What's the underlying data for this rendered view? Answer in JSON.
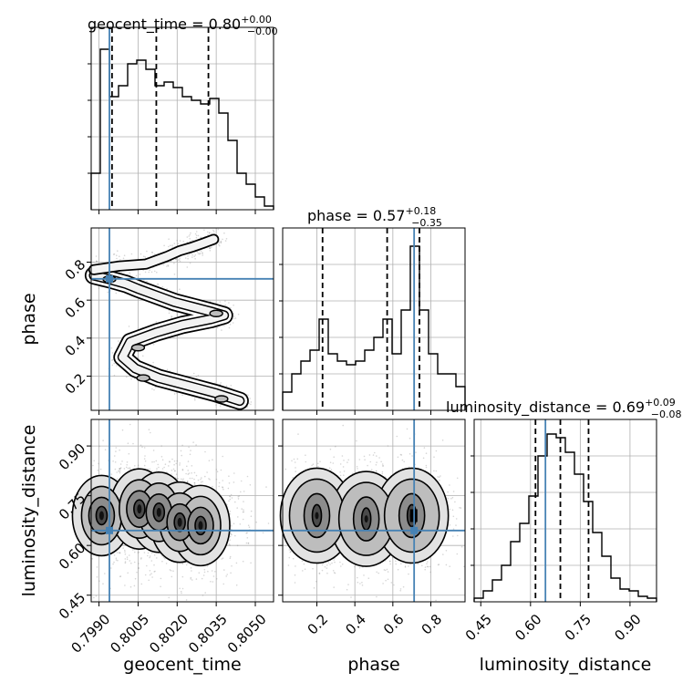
{
  "chart_data": {
    "type": "corner",
    "parameters": [
      "geocent_time",
      "phase",
      "luminosity_distance"
    ],
    "truths": {
      "geocent_time": 0.7994,
      "phase": 0.712,
      "luminosity_distance": 0.645
    },
    "titles": [
      {
        "param": "geocent_time",
        "text": "geocent_time = 0.80",
        "sup": "+0.00",
        "sub": "−0.00"
      },
      {
        "param": "phase",
        "text": "phase = 0.57",
        "sup": "+0.18",
        "sub": "−0.35"
      },
      {
        "param": "luminosity_distance",
        "text": "luminosity_distance = 0.69",
        "sup": "+0.09",
        "sub": "−0.08"
      }
    ],
    "axis_labels": {
      "geocent_time": "geocent_time",
      "phase": "phase",
      "luminosity_distance": "luminosity_distance"
    },
    "ranges": {
      "geocent_time": [
        0.7987,
        0.8057
      ],
      "phase": [
        0.02,
        0.98
      ],
      "luminosity_distance": [
        0.43,
        0.98
      ]
    },
    "ticks": {
      "geocent_time": [
        "0.7990",
        "0.8005",
        "0.8020",
        "0.8035",
        "0.8050"
      ],
      "phase": [
        "0.2",
        "0.4",
        "0.6",
        "0.8"
      ],
      "luminosity_distance": [
        "0.45",
        "0.60",
        "0.75",
        "0.90"
      ]
    },
    "histograms": {
      "geocent_time": {
        "edges": [
          0.7987,
          0.79905,
          0.7994,
          0.79975,
          0.8001,
          0.80045,
          0.8008,
          0.80115,
          0.8015,
          0.80185,
          0.8022,
          0.80255,
          0.8029,
          0.80325,
          0.8036,
          0.80395,
          0.8043,
          0.80465,
          0.805,
          0.80535,
          0.8057
        ],
        "counts": [
          0.2,
          0.88,
          0.62,
          0.68,
          0.8,
          0.82,
          0.77,
          0.68,
          0.7,
          0.67,
          0.62,
          0.6,
          0.58,
          0.61,
          0.53,
          0.38,
          0.2,
          0.14,
          0.07,
          0.02
        ],
        "quantiles": [
          0.7995,
          0.8012,
          0.8032
        ],
        "grid_levels": [
          0.2,
          0.4,
          0.6,
          0.8
        ]
      },
      "phase": {
        "edges": [
          0.02,
          0.068,
          0.116,
          0.164,
          0.212,
          0.26,
          0.308,
          0.356,
          0.404,
          0.452,
          0.5,
          0.548,
          0.596,
          0.644,
          0.692,
          0.74,
          0.788,
          0.836,
          0.884,
          0.932,
          0.98
        ],
        "counts": [
          0.1,
          0.2,
          0.27,
          0.33,
          0.5,
          0.31,
          0.27,
          0.25,
          0.27,
          0.33,
          0.4,
          0.5,
          0.31,
          0.55,
          0.9,
          0.55,
          0.31,
          0.2,
          0.2,
          0.13
        ],
        "quantiles": [
          0.23,
          0.57,
          0.74
        ],
        "grid_levels": [
          0.2,
          0.4,
          0.6,
          0.8
        ]
      },
      "luminosity_distance": {
        "edges": [
          0.43,
          0.4575,
          0.485,
          0.5125,
          0.54,
          0.5675,
          0.595,
          0.6225,
          0.65,
          0.6775,
          0.705,
          0.7325,
          0.76,
          0.7875,
          0.815,
          0.8425,
          0.87,
          0.8975,
          0.925,
          0.9525,
          0.98
        ],
        "counts": [
          0.02,
          0.06,
          0.12,
          0.2,
          0.33,
          0.43,
          0.58,
          0.8,
          0.92,
          0.9,
          0.82,
          0.7,
          0.55,
          0.38,
          0.25,
          0.13,
          0.07,
          0.06,
          0.03,
          0.02
        ],
        "quantiles": [
          0.615,
          0.69,
          0.775
        ],
        "grid_levels": [
          0.2,
          0.4,
          0.6,
          0.8
        ]
      }
    },
    "density_2d": [
      {
        "x": "geocent_time",
        "y": "phase",
        "ridge": [
          [
            0.7988,
            0.73
          ],
          [
            0.7994,
            0.71
          ],
          [
            0.80005,
            0.685
          ],
          [
            0.8005,
            0.66
          ],
          [
            0.8012,
            0.625
          ],
          [
            0.8019,
            0.59
          ],
          [
            0.8026,
            0.565
          ],
          [
            0.8033,
            0.54
          ],
          [
            0.8038,
            0.52
          ],
          [
            0.8033,
            0.5
          ],
          [
            0.8022,
            0.47
          ],
          [
            0.8012,
            0.43
          ],
          [
            0.8002,
            0.38
          ],
          [
            0.7999,
            0.3
          ],
          [
            0.8004,
            0.24
          ],
          [
            0.8013,
            0.19
          ],
          [
            0.8024,
            0.15
          ],
          [
            0.8035,
            0.11
          ],
          [
            0.8044,
            0.07
          ]
        ],
        "upper_blob": [
          [
            0.7988,
            0.76
          ],
          [
            0.7998,
            0.78
          ],
          [
            0.8008,
            0.79
          ],
          [
            0.8016,
            0.83
          ],
          [
            0.8021,
            0.86
          ],
          [
            0.8026,
            0.88
          ],
          [
            0.803,
            0.9
          ],
          [
            0.8034,
            0.92
          ]
        ],
        "cores": [
          [
            0.7994,
            0.71
          ],
          [
            0.8035,
            0.53
          ],
          [
            0.8005,
            0.35
          ],
          [
            0.8007,
            0.19
          ],
          [
            0.8037,
            0.08
          ]
        ]
      },
      {
        "x": "phase",
        "y": "luminosity_distance",
        "cores": [
          [
            0.2,
            0.69
          ],
          [
            0.46,
            0.68
          ],
          [
            0.7,
            0.69
          ]
        ],
        "peak": [
          0.71,
          0.69
        ]
      },
      {
        "x": "geocent_time",
        "y": "luminosity_distance",
        "cores": [
          [
            0.7991,
            0.69
          ],
          [
            0.80055,
            0.71
          ],
          [
            0.8013,
            0.7
          ],
          [
            0.8021,
            0.67
          ],
          [
            0.8029,
            0.66
          ]
        ]
      }
    ],
    "truth_color": "#4682b4",
    "grid": true
  }
}
